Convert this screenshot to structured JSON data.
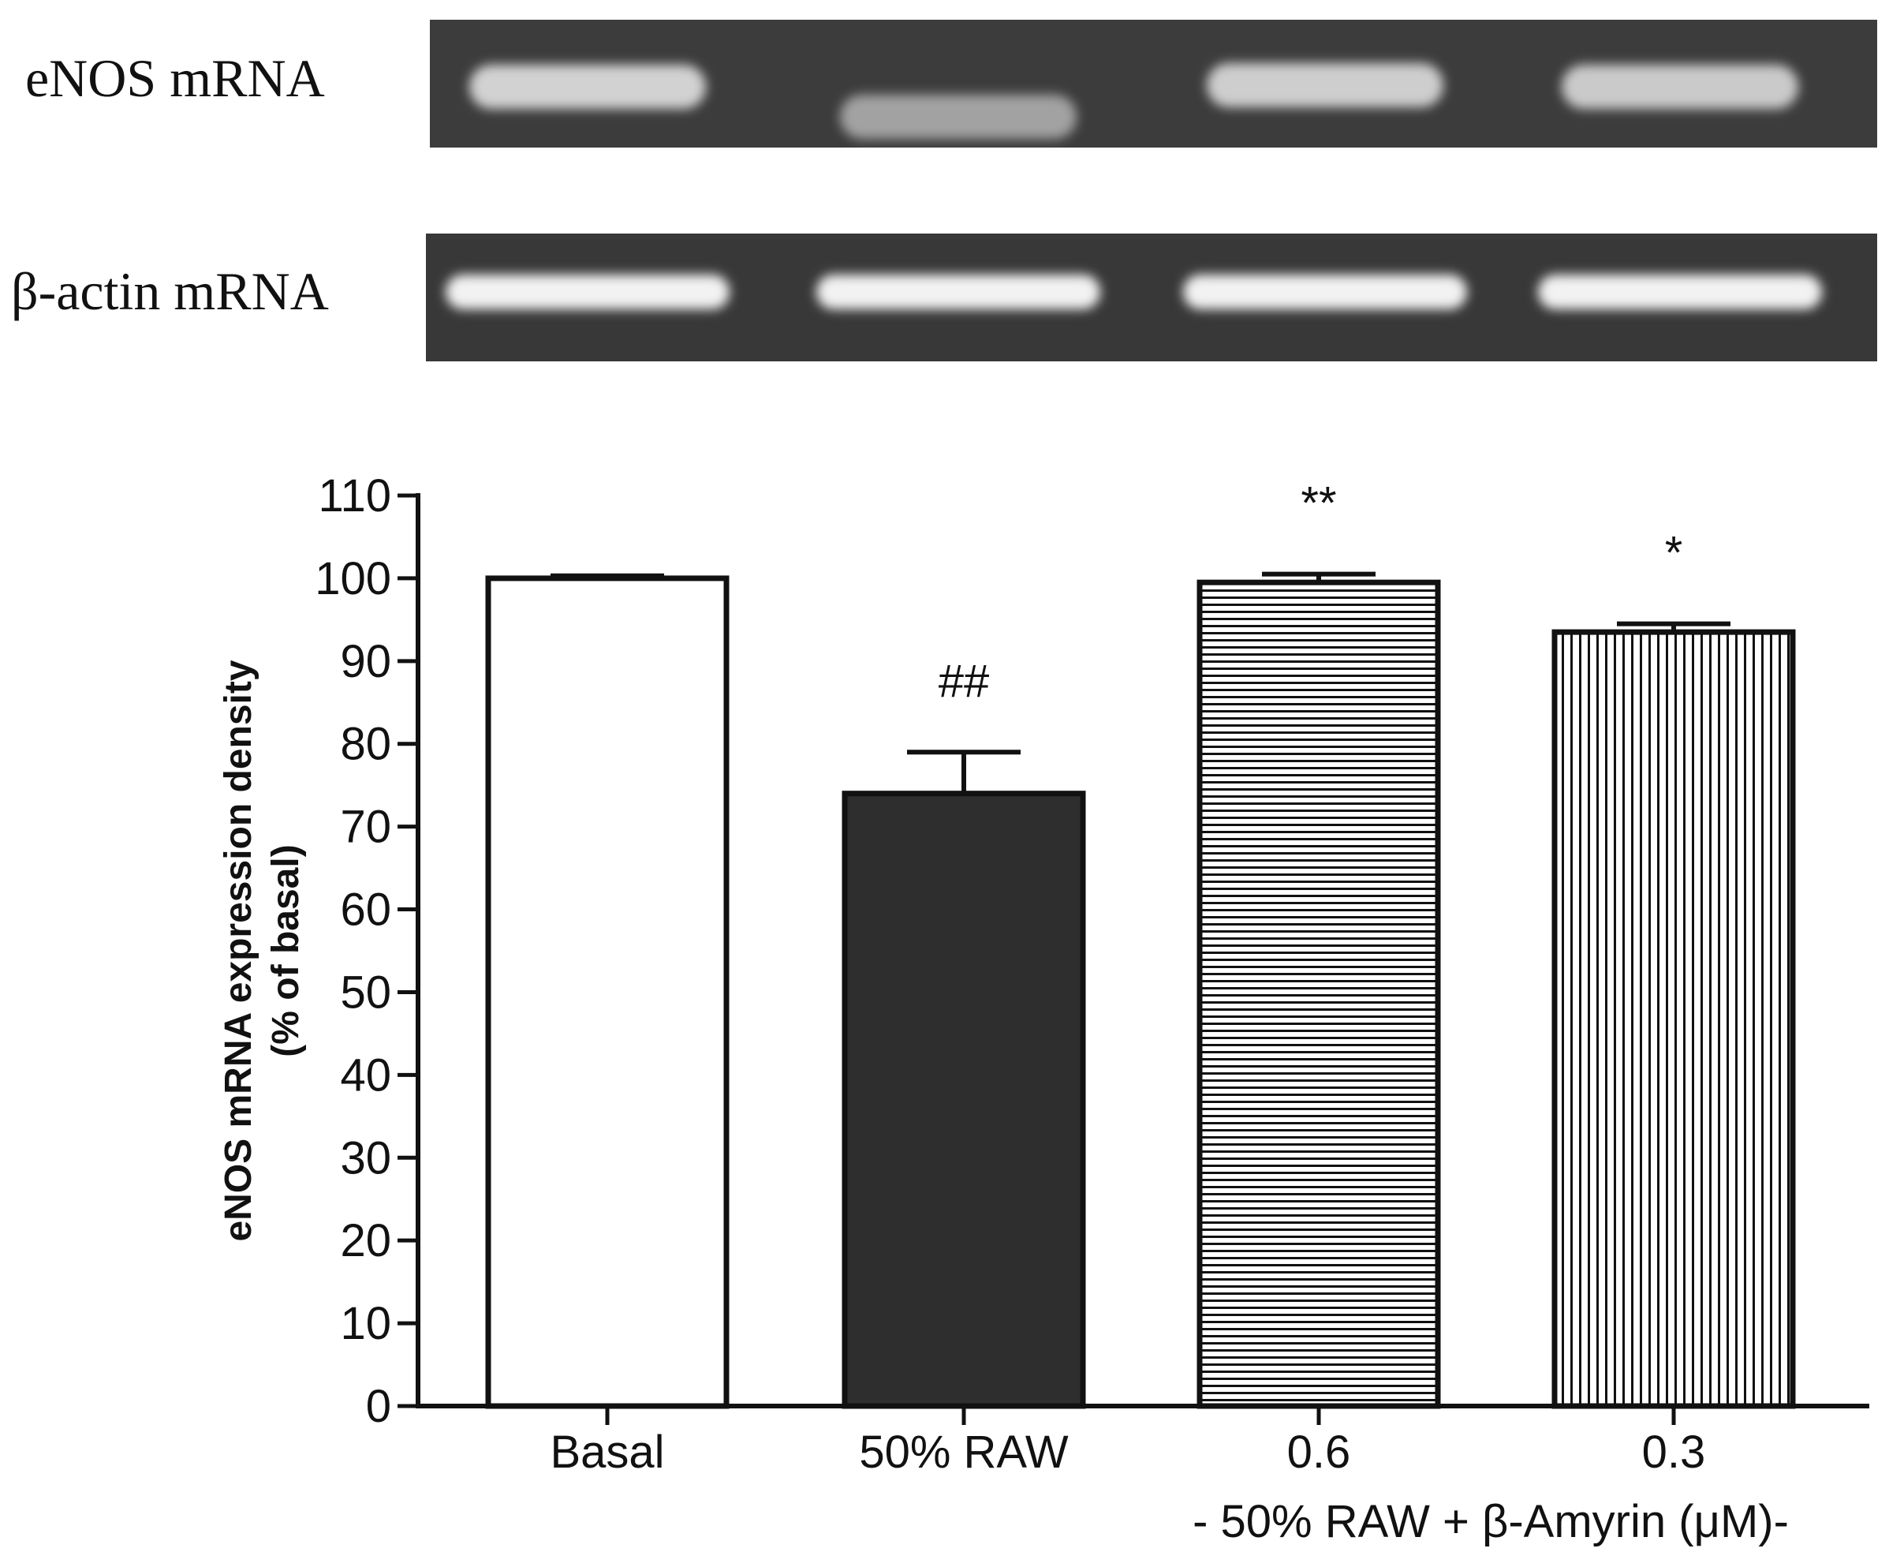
{
  "gel": {
    "rows": [
      {
        "label": "eNOS mRNA",
        "band_intensity": [
          0.75,
          0.35,
          0.72,
          0.68
        ]
      },
      {
        "label": "β-actin mRNA",
        "band_intensity": [
          1.0,
          1.0,
          1.0,
          1.0
        ]
      }
    ]
  },
  "chart_data": {
    "type": "bar",
    "categories": [
      "Basal",
      "50% RAW",
      "0.6",
      "0.3"
    ],
    "values": [
      100,
      74,
      99.5,
      93.5
    ],
    "errors": [
      0.3,
      5,
      1,
      1
    ],
    "annotations": [
      "",
      "##",
      "**",
      "*"
    ],
    "fills": [
      "white",
      "solid-dark",
      "horizontal-lines",
      "vertical-lines"
    ],
    "bar_fill_color": "#2e2e2e",
    "ylabel_line1": "eNOS mRNA expression density",
    "ylabel_line2": "(% of basal)",
    "group_label": "- 50% RAW + β-Amyrin (μM)-",
    "ylim": [
      0,
      110
    ],
    "yticks": [
      0,
      10,
      20,
      30,
      40,
      50,
      60,
      70,
      80,
      90,
      100,
      110
    ],
    "grid": false
  }
}
